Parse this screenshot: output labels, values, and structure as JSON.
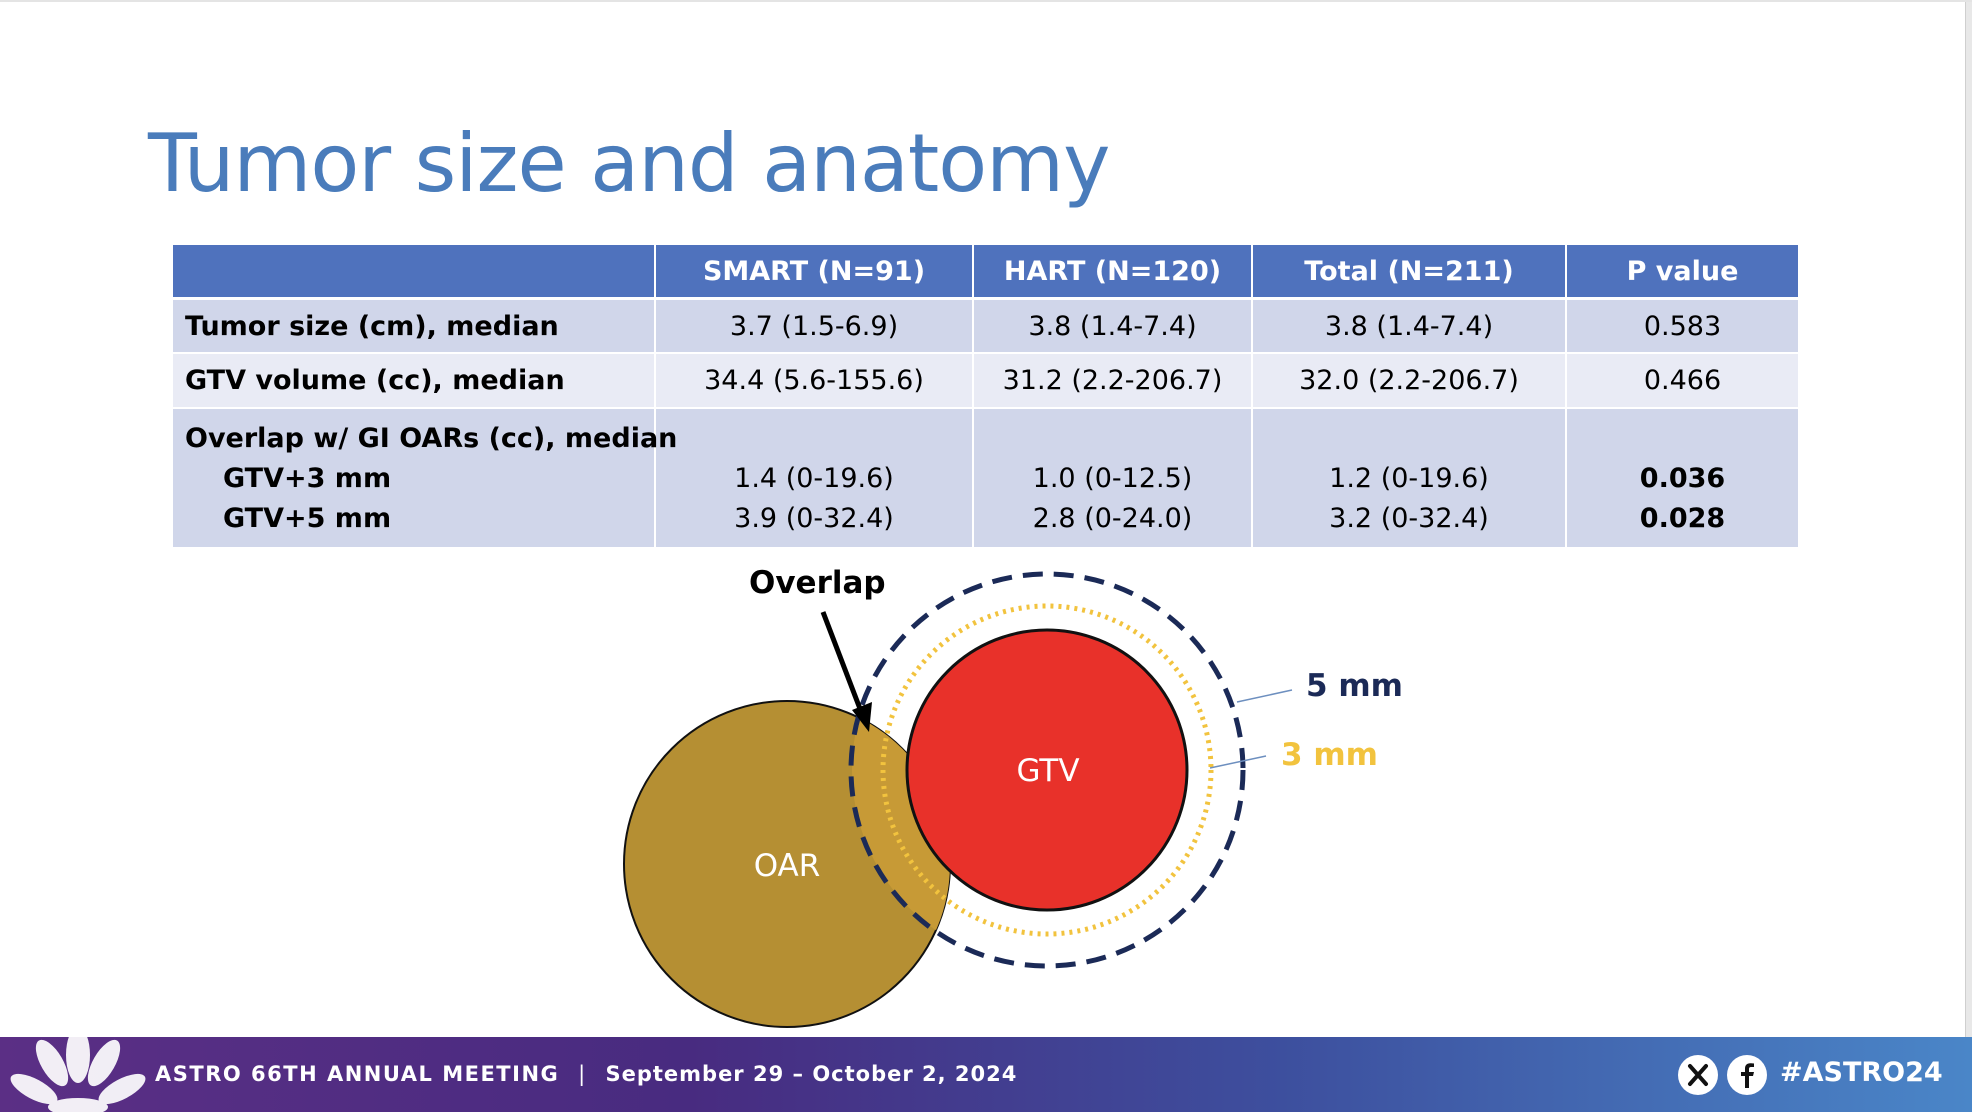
{
  "slide": {
    "title": "Tumor size and anatomy"
  },
  "table": {
    "headers": [
      "",
      "SMART (N=91)",
      "HART (N=120)",
      "Total (N=211)",
      "P value"
    ],
    "rows": [
      {
        "label": "Tumor size (cm), median",
        "smart": "3.7 (1.5-6.9)",
        "hart": "3.8 (1.4-7.4)",
        "total": "3.8 (1.4-7.4)",
        "p": "0.583"
      },
      {
        "label": "GTV volume (cc), median",
        "smart": "34.4 (5.6-155.6)",
        "hart": "31.2 (2.2-206.7)",
        "total": "32.0 (2.2-206.7)",
        "p": "0.466"
      }
    ],
    "overlap": {
      "label": "Overlap w/ GI OARs (cc), median",
      "sub": [
        {
          "label": "GTV+3 mm",
          "smart": "1.4 (0-19.6)",
          "hart": "1.0 (0-12.5)",
          "total": "1.2 (0-19.6)",
          "p": "0.036"
        },
        {
          "label": "GTV+5 mm",
          "smart": "3.9 (0-32.4)",
          "hart": "2.8 (0-24.0)",
          "total": "3.2 (0-32.4)",
          "p": "0.028"
        }
      ]
    }
  },
  "diagram": {
    "overlap_label": "Overlap",
    "gtv_label": "GTV",
    "oar_label": "OAR",
    "margin_5_label": "5 mm",
    "margin_3_label": "3 mm",
    "colors": {
      "gtv": "#e8312a",
      "oar": "#b58f33",
      "margin_5": "#1b2a57",
      "margin_3": "#f2c33e"
    }
  },
  "footer": {
    "meeting": "ASTRO 66TH ANNUAL MEETING",
    "separator": "|",
    "dates": "September 29 – October 2, 2024",
    "hashtag": "#ASTRO24",
    "icons": [
      "x-icon",
      "facebook-icon",
      "lotus-logo"
    ]
  }
}
